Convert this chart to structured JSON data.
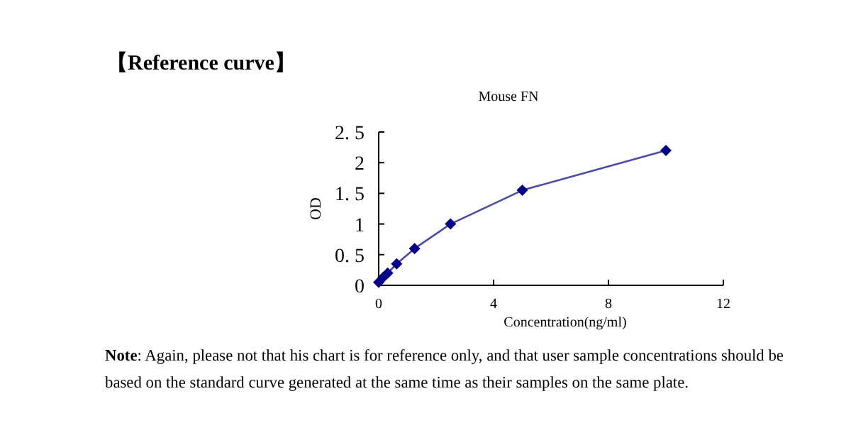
{
  "chart_data": {
    "type": "line",
    "title": "【Reference curve】",
    "subtitle": "Mouse FN",
    "xlabel": "Concentration(ng/ml)",
    "ylabel": "OD",
    "x": [
      0,
      0.156,
      0.313,
      0.625,
      1.25,
      2.5,
      5,
      10
    ],
    "series": [
      {
        "color": "#00008b",
        "values": [
          0.05,
          0.13,
          0.2,
          0.35,
          0.6,
          1.0,
          1.55,
          2.2
        ]
      }
    ],
    "marker": "diamond",
    "line_style": "solid",
    "grid": false,
    "xlim": [
      0,
      12
    ],
    "xticks": [
      0,
      4,
      8,
      12
    ],
    "ylim": [
      0,
      2.5
    ],
    "yticks": [
      0,
      {
        "value": 0.5,
        "label": "0. 5"
      },
      1,
      {
        "value": 1.5,
        "label": "1. 5"
      },
      2,
      {
        "value": 2.5,
        "label": "2. 5"
      }
    ],
    "annotations": [
      "Note: Again, please not that his chart is for reference only, and that user sample concentrations should be based on the standard curve generated at the same time as their samples on the same plate."
    ]
  }
}
